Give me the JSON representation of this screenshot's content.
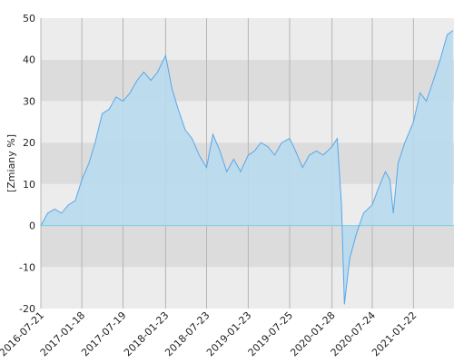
{
  "chart_data": {
    "type": "area",
    "y_label": "[Zmiany %]",
    "x": [
      "2016-07-21",
      "2016-08-20",
      "2016-09-20",
      "2016-10-20",
      "2016-11-20",
      "2016-12-20",
      "2017-01-18",
      "2017-02-18",
      "2017-03-18",
      "2017-04-18",
      "2017-05-18",
      "2017-06-18",
      "2017-07-19",
      "2017-08-19",
      "2017-09-19",
      "2017-10-19",
      "2017-11-19",
      "2017-12-19",
      "2018-01-23",
      "2018-02-20",
      "2018-03-20",
      "2018-04-20",
      "2018-05-20",
      "2018-06-20",
      "2018-07-23",
      "2018-08-20",
      "2018-09-20",
      "2018-10-20",
      "2018-11-20",
      "2018-12-20",
      "2019-01-23",
      "2019-02-20",
      "2019-03-20",
      "2019-04-20",
      "2019-05-20",
      "2019-06-20",
      "2019-07-25",
      "2019-08-20",
      "2019-09-20",
      "2019-10-20",
      "2019-11-20",
      "2019-12-20",
      "2020-01-28",
      "2020-02-20",
      "2020-03-10",
      "2020-03-23",
      "2020-04-15",
      "2020-05-15",
      "2020-06-15",
      "2020-07-24",
      "2020-08-20",
      "2020-09-20",
      "2020-10-10",
      "2020-10-25",
      "2020-11-15",
      "2020-12-15",
      "2021-01-22",
      "2021-02-20",
      "2021-03-20",
      "2021-04-20",
      "2021-05-20",
      "2021-06-20",
      "2021-07-15"
    ],
    "values": [
      0,
      3,
      4,
      3,
      5,
      6,
      11,
      15,
      20,
      27,
      28,
      31,
      30,
      32,
      35,
      37,
      35,
      37,
      41,
      33,
      28,
      23,
      21,
      17,
      14,
      22,
      18,
      13,
      16,
      13,
      17,
      18,
      20,
      19,
      17,
      20,
      21,
      18,
      14,
      17,
      18,
      17,
      19,
      21,
      5,
      -19,
      -8,
      -2,
      3,
      5,
      9,
      13,
      11,
      3,
      15,
      20,
      25,
      32,
      30,
      35,
      40,
      46,
      47
    ],
    "color": "#5aa6e8",
    "fill": "#b8dcef",
    "zero_color": "#7fd0e0",
    "band_colors": [
      "#ececec",
      "#dcdcdc"
    ],
    "xlim": [
      "2016-07-21",
      "2021-07-20"
    ],
    "xticks": [
      "2016-07-21",
      "2017-01-18",
      "2017-07-19",
      "2018-01-23",
      "2018-07-23",
      "2019-01-23",
      "2019-07-25",
      "2020-01-28",
      "2020-07-24",
      "2021-01-22"
    ],
    "ylim": [
      -20,
      50
    ],
    "yticks": [
      -20,
      -10,
      0,
      10,
      20,
      30,
      40,
      50
    ],
    "grid": true
  }
}
